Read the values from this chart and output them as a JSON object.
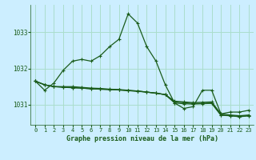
{
  "title": "Graphe pression niveau de la mer (hPa)",
  "background_color": "#cceeff",
  "grid_color": "#aaddcc",
  "line_color": "#1a5c1a",
  "xlim": [
    -0.5,
    23.5
  ],
  "ylim": [
    1030.45,
    1033.75
  ],
  "yticks": [
    1031,
    1032,
    1033
  ],
  "xticks": [
    0,
    1,
    2,
    3,
    4,
    5,
    6,
    7,
    8,
    9,
    10,
    11,
    12,
    13,
    14,
    15,
    16,
    17,
    18,
    19,
    20,
    21,
    22,
    23
  ],
  "series1": [
    1031.65,
    1031.4,
    1031.6,
    1031.95,
    1032.2,
    1032.25,
    1032.2,
    1032.35,
    1032.6,
    1032.8,
    1033.5,
    1033.25,
    1032.6,
    1032.2,
    1031.55,
    1031.05,
    1030.9,
    1030.95,
    1031.4,
    1031.4,
    1030.75,
    1030.8,
    1030.8,
    1030.85
  ],
  "series2": [
    1031.65,
    1031.55,
    1031.5,
    1031.5,
    1031.5,
    1031.48,
    1031.46,
    1031.45,
    1031.43,
    1031.42,
    1031.4,
    1031.38,
    1031.35,
    1031.32,
    1031.28,
    1031.1,
    1031.08,
    1031.06,
    1031.07,
    1031.08,
    1030.75,
    1030.72,
    1030.7,
    1030.72
  ],
  "series3": [
    1031.65,
    1031.55,
    1031.5,
    1031.48,
    1031.47,
    1031.46,
    1031.44,
    1031.43,
    1031.42,
    1031.41,
    1031.39,
    1031.37,
    1031.35,
    1031.32,
    1031.28,
    1031.08,
    1031.06,
    1031.04,
    1031.04,
    1031.05,
    1030.72,
    1030.7,
    1030.68,
    1030.7
  ],
  "series4": [
    1031.65,
    1031.55,
    1031.5,
    1031.49,
    1031.47,
    1031.46,
    1031.44,
    1031.43,
    1031.42,
    1031.41,
    1031.39,
    1031.38,
    1031.35,
    1031.32,
    1031.28,
    1031.05,
    1031.03,
    1031.02,
    1031.03,
    1031.04,
    1030.71,
    1030.7,
    1030.67,
    1030.7
  ]
}
